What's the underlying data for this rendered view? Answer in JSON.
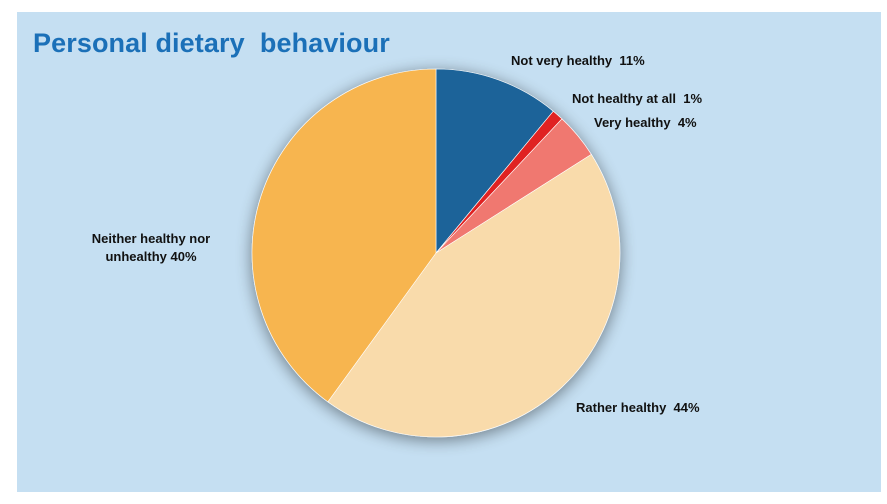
{
  "chart_data": {
    "type": "pie",
    "title": "Personal dietary  behaviour",
    "slices": [
      {
        "label": "Not very healthy",
        "pct_text": "11%",
        "value": 11,
        "color": "#1c6399"
      },
      {
        "label": "Not healthy at all",
        "pct_text": "1%",
        "value": 1,
        "color": "#e02323"
      },
      {
        "label": "Very healthy",
        "pct_text": "4%",
        "value": 4,
        "color": "#f07870"
      },
      {
        "label": "Rather healthy",
        "pct_text": "44%",
        "value": 44,
        "color": "#f9dbab"
      },
      {
        "label": "Neither healthy nor unhealthy",
        "pct_text": "40%",
        "value": 40,
        "color": "#f7b54f"
      }
    ],
    "start_angle": "12 o'clock",
    "direction": "clockwise",
    "legend": "none"
  },
  "labels": {
    "not_very_healthy": "Not very healthy  11%",
    "not_healthy_at_all": "Not healthy at all  1%",
    "very_healthy": "Very healthy  4%",
    "rather_healthy": "Rather healthy  44%",
    "neither_line1": "Neither healthy nor",
    "neither_line2": "unhealthy 40%"
  },
  "colors": {
    "panel_background": "#c5dff2",
    "title": "#1b70b8"
  }
}
